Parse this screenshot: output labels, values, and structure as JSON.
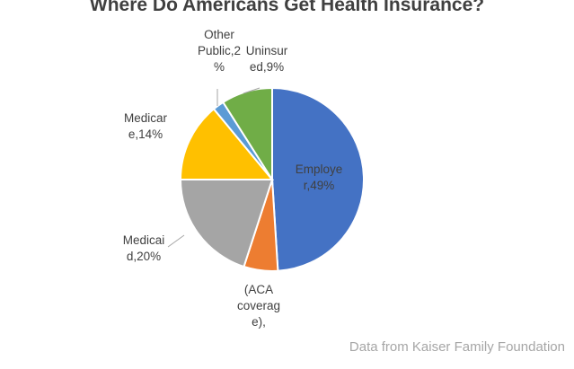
{
  "chart_data": {
    "type": "pie",
    "title": "Where Do Americans Get Health Insurance?",
    "slices": [
      {
        "name": "Employer",
        "value": 49,
        "label_lines": [
          "Employe",
          "r,49%"
        ],
        "color": "#4472c4"
      },
      {
        "name": "(ACA coverage)",
        "value": 6,
        "label_lines": [
          "(ACA",
          "coverag",
          "e),"
        ],
        "color": "#ed7d31"
      },
      {
        "name": "Medicaid",
        "value": 20,
        "label_lines": [
          "Medicai",
          "d,20%"
        ],
        "color": "#a5a5a5"
      },
      {
        "name": "Medicare",
        "value": 14,
        "label_lines": [
          "Medicar",
          "e,14%"
        ],
        "color": "#ffc000"
      },
      {
        "name": "Other Public",
        "value": 2,
        "label_lines": [
          "Other",
          "Public,2",
          "%"
        ],
        "color": "#5b9bd5"
      },
      {
        "name": "Uninsured",
        "value": 9,
        "label_lines": [
          "Uninsur",
          "ed,9%"
        ],
        "color": "#70ad47"
      }
    ],
    "source_note": "Data from Kaiser Family Foundation"
  }
}
